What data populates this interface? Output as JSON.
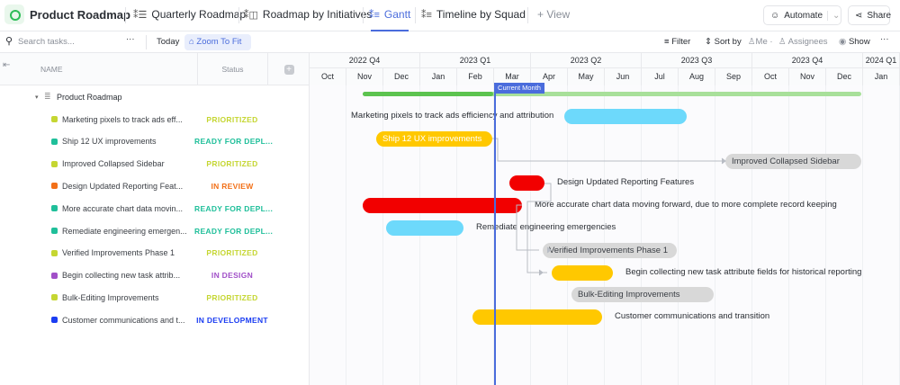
{
  "header": {
    "title": "Product Roadmap",
    "tabs": [
      {
        "label": "Quarterly Roadmap",
        "icon": "list-icon"
      },
      {
        "label": "Roadmap by Initiatives",
        "icon": "board-icon"
      },
      {
        "label": "Gantt",
        "icon": "gantt-icon",
        "active": true
      },
      {
        "label": "Timeline by Squad",
        "icon": "timeline-icon"
      }
    ],
    "add_view": "+ View",
    "automate": "Automate",
    "share": "Share"
  },
  "toolbar": {
    "search_placeholder": "Search tasks...",
    "today": "Today",
    "zoom_to_fit": "Zoom To Fit",
    "filter": "Filter",
    "sort_by": "Sort by",
    "me": "Me",
    "assignees": "Assignees",
    "show": "Show"
  },
  "columns": {
    "name": "NAME",
    "status": "Status"
  },
  "timeline": {
    "quarters": [
      "2022 Q4",
      "2023 Q1",
      "2023 Q2",
      "2023 Q3",
      "2023 Q4",
      "2024 Q1"
    ],
    "months": [
      "Oct",
      "Nov",
      "Dec",
      "Jan",
      "Feb",
      "Mar",
      "Apr",
      "May",
      "Jun",
      "Jul",
      "Aug",
      "Sep",
      "Oct",
      "Nov",
      "Dec",
      "Jan"
    ],
    "current_month_label": "Current Month"
  },
  "group": {
    "name": "Product Roadmap"
  },
  "tasks": [
    {
      "name": "Marketing pixels to track ads eff...",
      "full": "Marketing pixels to track ads efficiency and attribution",
      "status": "PRIORITIZED",
      "status_color": "#c5d632",
      "bar_color": "#6dd9fb"
    },
    {
      "name": "Ship 12 UX improvements",
      "full": "Ship 12 UX improvements",
      "status": "READY FOR DEPL...",
      "status_color": "#1fbf9a",
      "bar_color": "#ffc800"
    },
    {
      "name": "Improved Collapsed Sidebar",
      "full": "Improved Collapsed Sidebar",
      "status": "PRIORITIZED",
      "status_color": "#c5d632",
      "bar_color": "#d8d8d8"
    },
    {
      "name": "Design Updated Reporting Feat...",
      "full": "Design Updated Reporting Features",
      "status": "IN REVIEW",
      "status_color": "#f27018",
      "bar_color": "#f20000"
    },
    {
      "name": "More accurate chart data movin...",
      "full": "More accurate chart data moving forward, due to more complete record keeping",
      "status": "READY FOR DEPL...",
      "status_color": "#1fbf9a",
      "bar_color": "#f20000"
    },
    {
      "name": "Remediate engineering emergen...",
      "full": "Remediate engineering emergencies",
      "status": "READY FOR DEPL...",
      "status_color": "#1fbf9a",
      "bar_color": "#6dd9fb"
    },
    {
      "name": "Verified Improvements Phase 1",
      "full": "Verified Improvements Phase 1",
      "status": "PRIORITIZED",
      "status_color": "#c5d632",
      "bar_color": "#d8d8d8"
    },
    {
      "name": "Begin collecting new task attrib...",
      "full": "Begin collecting new task attribute fields for historical reporting",
      "status": "IN DESIGN",
      "status_color": "#a150c8",
      "bar_color": "#ffc800"
    },
    {
      "name": "Bulk-Editing Improvements",
      "full": "Bulk-Editing Improvements",
      "status": "PRIORITIZED",
      "status_color": "#c5d632",
      "bar_color": "#d8d8d8"
    },
    {
      "name": "Customer communications and t...",
      "full": "Customer communications and transition",
      "status": "IN DEVELOPMENT",
      "status_color": "#1b3df2",
      "bar_color": "#ffc800"
    }
  ],
  "colors": {
    "accent": "#4a6cdc",
    "progress_done": "#5cc34f",
    "progress_remaining": "#a8e09a"
  }
}
